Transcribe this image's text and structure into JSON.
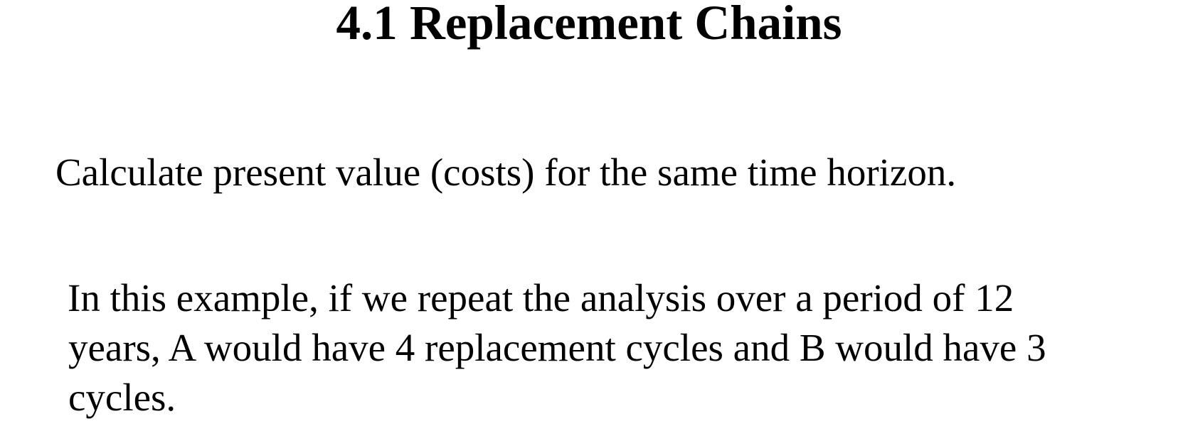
{
  "slide": {
    "title": "4.1 Replacement Chains",
    "paragraph1": "Calculate present value (costs) for the same time horizon.",
    "paragraph2_lines": [
      "In this example, if we repeat the analysis over a period of 12",
      "years, A would have 4 replacement cycles and B would have 3",
      "cycles."
    ]
  }
}
